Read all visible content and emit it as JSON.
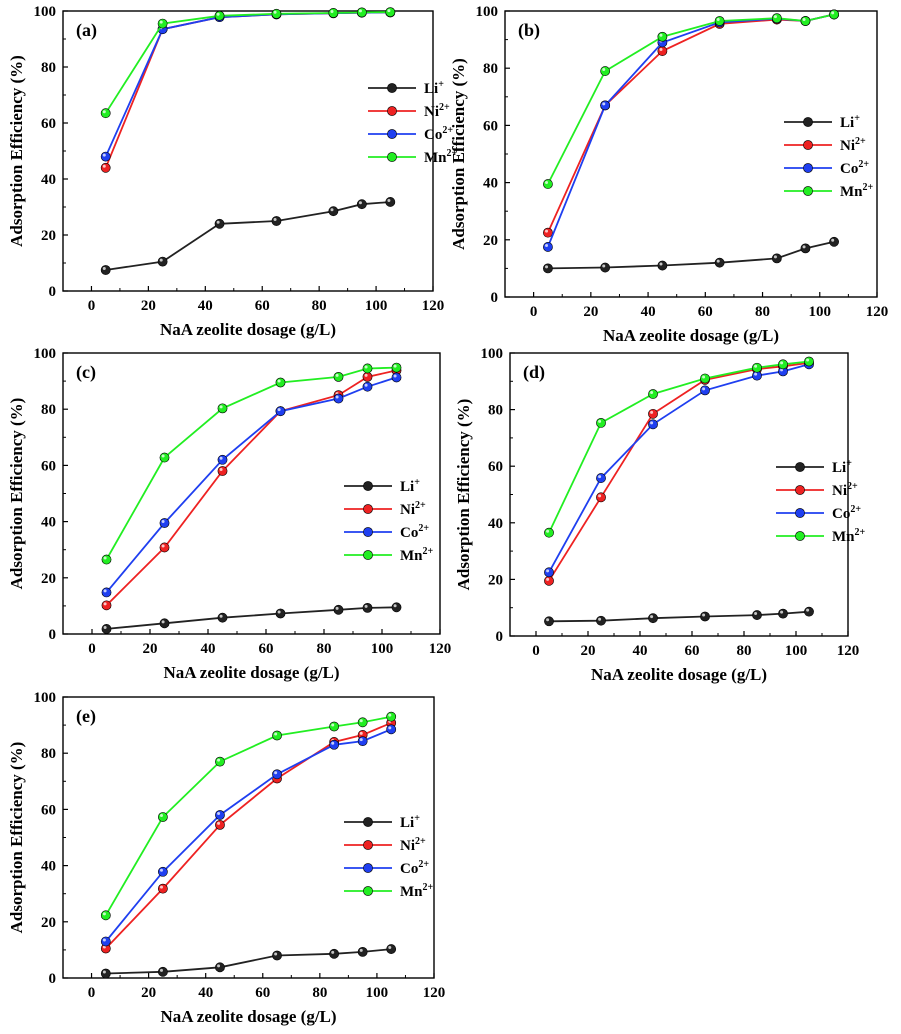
{
  "chart_data": [
    {
      "type": "line",
      "panel_label": "(a)",
      "xlabel": "NaA zeolite dosage (g/L)",
      "ylabel": "Adsorption  Efficiency (%)",
      "x": [
        5,
        25,
        45,
        65,
        85,
        95,
        105
      ],
      "xlim": [
        -10,
        120
      ],
      "ylim": [
        0,
        100
      ],
      "xticks": [
        0,
        20,
        40,
        60,
        80,
        100,
        120
      ],
      "yticks": [
        0,
        20,
        40,
        60,
        80,
        100
      ],
      "legend_position": "center-right",
      "series": [
        {
          "name": "Li",
          "sup": "+",
          "color": "#222222",
          "values": [
            7.5,
            10.5,
            24,
            25,
            28.5,
            31,
            31.8
          ]
        },
        {
          "name": "Ni",
          "sup": "2+",
          "color": "#ee2222",
          "values": [
            44,
            93.5,
            97.8,
            98.8,
            99.2,
            99.4,
            99.5
          ]
        },
        {
          "name": "Co",
          "sup": "2+",
          "color": "#1f3ff0",
          "values": [
            48,
            93.5,
            97.8,
            98.8,
            99.2,
            99.4,
            99.5
          ]
        },
        {
          "name": "Mn",
          "sup": "2+",
          "color": "#22ee22",
          "values": [
            63.5,
            95.5,
            98.3,
            99,
            99.3,
            99.5,
            99.6
          ]
        }
      ]
    },
    {
      "type": "line",
      "panel_label": "(b)",
      "xlabel": "NaA zeolite dosage (g/L)",
      "ylabel": "Adsorption  Efficiency (%)",
      "x": [
        5,
        25,
        45,
        65,
        85,
        95,
        105
      ],
      "xlim": [
        -10,
        120
      ],
      "ylim": [
        0,
        100
      ],
      "xticks": [
        0,
        20,
        40,
        60,
        80,
        100,
        120
      ],
      "yticks": [
        0,
        20,
        40,
        60,
        80,
        100
      ],
      "legend_position": "center-right",
      "series": [
        {
          "name": "Li",
          "sup": "+",
          "color": "#222222",
          "values": [
            10,
            10.3,
            11,
            12,
            13.5,
            17,
            19.3
          ]
        },
        {
          "name": "Ni",
          "sup": "2+",
          "color": "#ee2222",
          "values": [
            22.5,
            67,
            86,
            95.5,
            97,
            96.5,
            98.8
          ]
        },
        {
          "name": "Co",
          "sup": "2+",
          "color": "#1f3ff0",
          "values": [
            17.5,
            67,
            89,
            96,
            97.3,
            96.5,
            98.8
          ]
        },
        {
          "name": "Mn",
          "sup": "2+",
          "color": "#22ee22",
          "values": [
            39.5,
            79,
            91,
            96.5,
            97.5,
            96.5,
            98.8
          ]
        }
      ]
    },
    {
      "type": "line",
      "panel_label": "(c)",
      "xlabel": "NaA zeolite dosage (g/L)",
      "ylabel": "Adsorption  Efficiency (%)",
      "x": [
        5,
        25,
        45,
        65,
        85,
        95,
        105
      ],
      "xlim": [
        -10,
        120
      ],
      "ylim": [
        0,
        100
      ],
      "xticks": [
        0,
        20,
        40,
        60,
        80,
        100,
        120
      ],
      "yticks": [
        0,
        20,
        40,
        60,
        80,
        100
      ],
      "legend_position": "center-right",
      "series": [
        {
          "name": "Li",
          "sup": "+",
          "color": "#222222",
          "values": [
            1.8,
            3.8,
            5.8,
            7.3,
            8.6,
            9.3,
            9.5
          ]
        },
        {
          "name": "Ni",
          "sup": "2+",
          "color": "#ee2222",
          "values": [
            10.2,
            30.8,
            58,
            79.3,
            85,
            91.5,
            93.8
          ]
        },
        {
          "name": "Co",
          "sup": "2+",
          "color": "#1f3ff0",
          "values": [
            14.8,
            39.5,
            62,
            79.3,
            83.8,
            88,
            91.3
          ]
        },
        {
          "name": "Mn",
          "sup": "2+",
          "color": "#22ee22",
          "values": [
            26.5,
            62.8,
            80.3,
            89.5,
            91.5,
            94.5,
            94.8
          ]
        }
      ]
    },
    {
      "type": "line",
      "panel_label": "(d)",
      "xlabel": "NaA zeolite dosage (g/L)",
      "ylabel": "Adsorption  Efficiency (%)",
      "x": [
        5,
        25,
        45,
        65,
        85,
        95,
        105
      ],
      "xlim": [
        -10,
        120
      ],
      "ylim": [
        0,
        100
      ],
      "xticks": [
        0,
        20,
        40,
        60,
        80,
        100,
        120
      ],
      "yticks": [
        0,
        20,
        40,
        60,
        80,
        100
      ],
      "legend_position": "center-right",
      "series": [
        {
          "name": "Li",
          "sup": "+",
          "color": "#222222",
          "values": [
            5.2,
            5.4,
            6.3,
            6.9,
            7.4,
            7.9,
            8.6
          ]
        },
        {
          "name": "Ni",
          "sup": "2+",
          "color": "#ee2222",
          "values": [
            19.5,
            49,
            78.5,
            90.5,
            94.3,
            95.3,
            96.5
          ]
        },
        {
          "name": "Co",
          "sup": "2+",
          "color": "#1f3ff0",
          "values": [
            22.5,
            55.8,
            74.8,
            86.8,
            92,
            93.5,
            96
          ]
        },
        {
          "name": "Mn",
          "sup": "2+",
          "color": "#22ee22",
          "values": [
            36.5,
            75.3,
            85.5,
            91,
            94.8,
            96,
            97
          ]
        }
      ]
    },
    {
      "type": "line",
      "panel_label": "(e)",
      "xlabel": "NaA zeolite dosage (g/L)",
      "ylabel": "Adsorption  Efficiency (%)",
      "x": [
        5,
        25,
        45,
        65,
        85,
        95,
        105
      ],
      "xlim": [
        -10,
        120
      ],
      "ylim": [
        0,
        100
      ],
      "xticks": [
        0,
        20,
        40,
        60,
        80,
        100,
        120
      ],
      "yticks": [
        0,
        20,
        40,
        60,
        80,
        100
      ],
      "legend_position": "center-right",
      "series": [
        {
          "name": "Li",
          "sup": "+",
          "color": "#222222",
          "values": [
            1.6,
            2.2,
            3.8,
            8,
            8.6,
            9.3,
            10.3
          ]
        },
        {
          "name": "Ni",
          "sup": "2+",
          "color": "#ee2222",
          "values": [
            10.5,
            31.8,
            54.5,
            71,
            84,
            86.5,
            90.8
          ]
        },
        {
          "name": "Co",
          "sup": "2+",
          "color": "#1f3ff0",
          "values": [
            13,
            37.8,
            58,
            72.5,
            83,
            84.3,
            88.5
          ]
        },
        {
          "name": "Mn",
          "sup": "2+",
          "color": "#22ee22",
          "values": [
            22.3,
            57.3,
            77,
            86.3,
            89.5,
            91,
            93
          ]
        }
      ]
    }
  ]
}
